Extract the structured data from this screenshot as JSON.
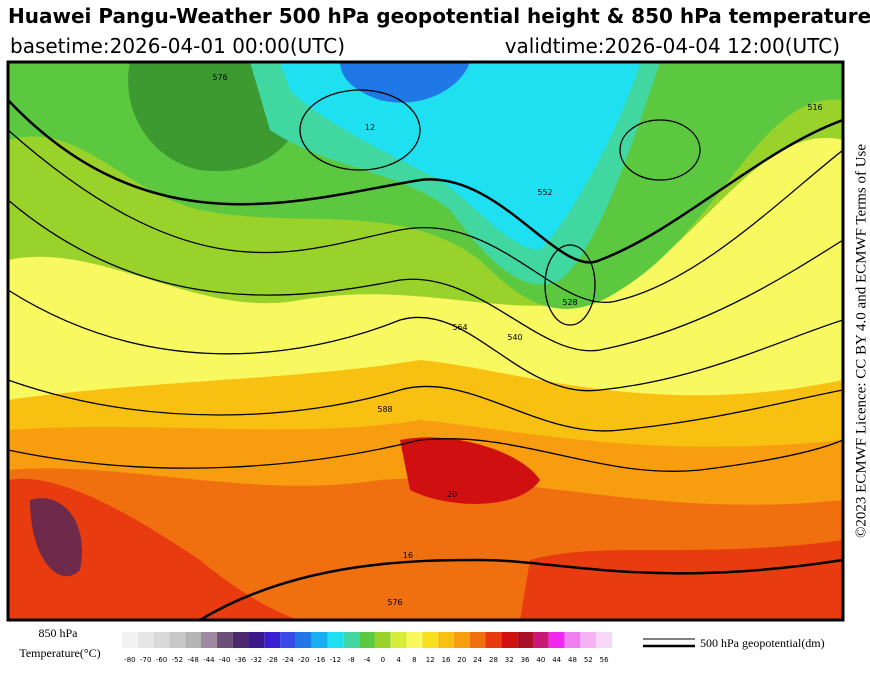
{
  "header": {
    "title": "Huawei Pangu-Weather 500 hPa geopotential height & 850 hPa temperature",
    "basetime": "basetime:2026-04-01 00:00(UTC)",
    "validtime": "validtime:2026-04-04 12:00(UTC)"
  },
  "credit": "©2023 ECMWF Licence: CC BY 4.0 and ECMWF Terms of Use",
  "legend": {
    "title_line1": "850 hPa",
    "title_line2": "Temperature(°C)",
    "ticks": [
      -80,
      -70,
      -60,
      -52,
      -48,
      -44,
      -40,
      -36,
      -32,
      -28,
      -24,
      -20,
      -16,
      -12,
      -8,
      -4,
      0,
      4,
      8,
      12,
      16,
      20,
      24,
      28,
      32,
      36,
      40,
      44,
      48,
      52,
      56
    ],
    "colors": [
      "#f2f2f2",
      "#e6e6e6",
      "#d9d9d9",
      "#c8c8c8",
      "#b4b4b4",
      "#9c8aa0",
      "#6e4f7a",
      "#4b2a6e",
      "#3c1a8c",
      "#3a1ecf",
      "#3b4ae6",
      "#1f78e6",
      "#18aef0",
      "#1ee0f0",
      "#40d8a0",
      "#5cc840",
      "#9ad22c",
      "#d8ec3a",
      "#f8f860",
      "#f8e020",
      "#f8c010",
      "#f89c10",
      "#f07010",
      "#e83c10",
      "#d01010",
      "#a81028",
      "#c81878",
      "#f028f0",
      "#f080f0",
      "#f4b4f4",
      "#f8d8f8"
    ],
    "contour_label": "500 hPa geopotential(dm)"
  },
  "map": {
    "contour_labels": [
      "576",
      "552",
      "528",
      "540",
      "564",
      "588",
      "516",
      "576",
      "12",
      "20",
      "16"
    ]
  }
}
